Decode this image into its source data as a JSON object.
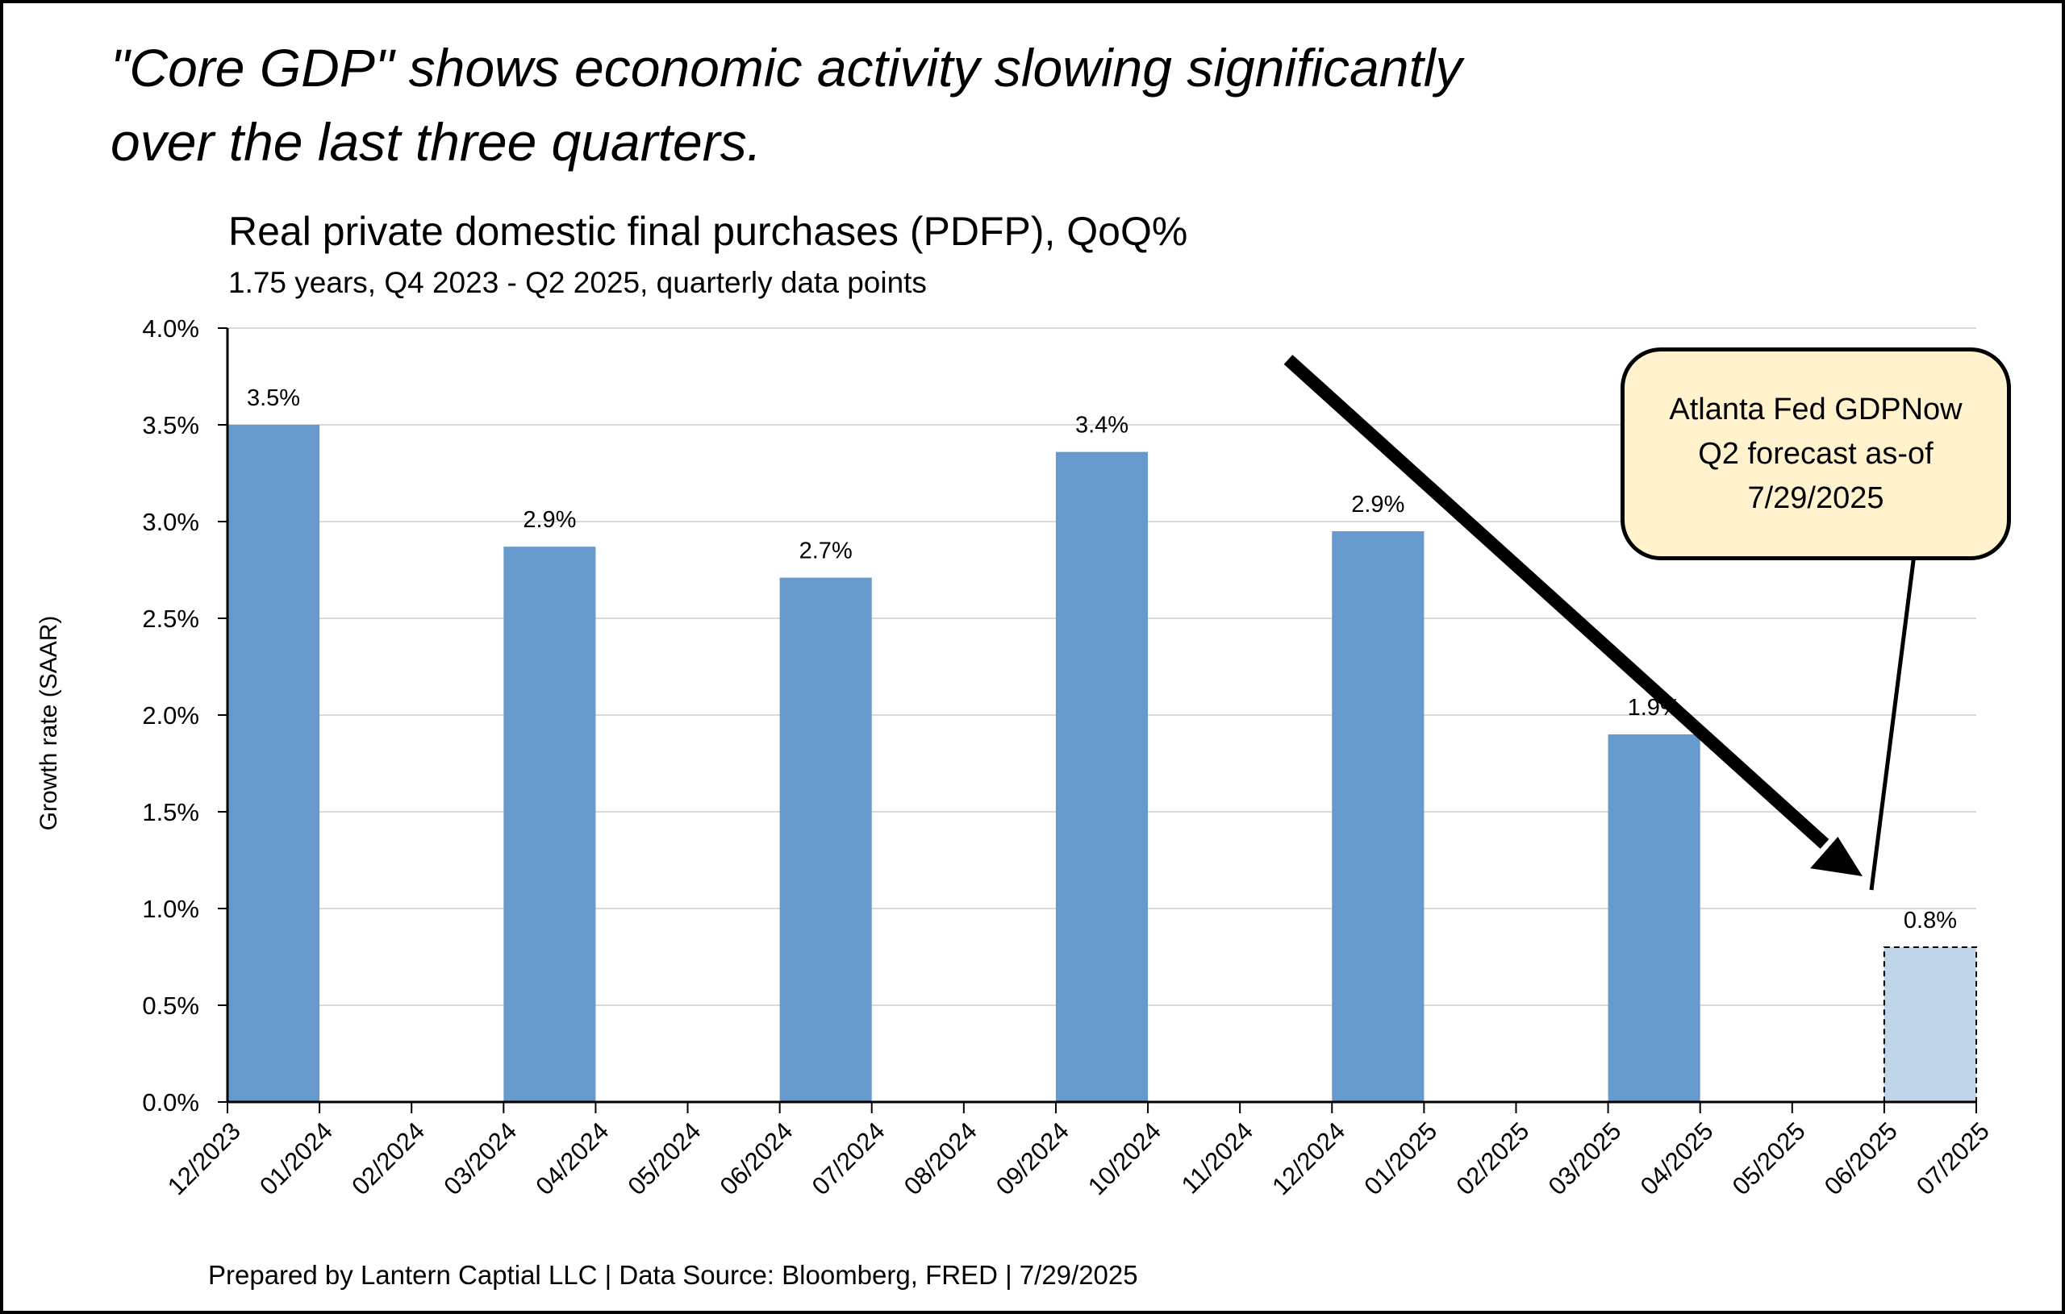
{
  "headline": [
    "\"Core GDP\" shows economic activity slowing significantly",
    "over the last three quarters."
  ],
  "footer": "Prepared by Lantern Captial LLC | Data Source: Bloomberg, FRED | 7/29/2025",
  "callout": [
    "Atlanta Fed GDPNow",
    "Q2 forecast as-of",
    "7/29/2025"
  ],
  "colors": {
    "bar": "#6699cc",
    "forecast_bar": "#c0d5ea",
    "callout_fill": "#fff2cc",
    "grid": "#d9d9d9"
  },
  "chart_data": {
    "type": "bar",
    "title": "Real private domestic final purchases (PDFP), QoQ%",
    "subtitle": "1.75 years, Q4 2023 - Q2 2025, quarterly data points",
    "ylabel": "Growth rate (SAAR)",
    "xlabel": "",
    "ylim": [
      0,
      4.0
    ],
    "yticks": [
      "0.0%",
      "0.5%",
      "1.0%",
      "1.5%",
      "2.0%",
      "2.5%",
      "3.0%",
      "3.5%",
      "4.0%"
    ],
    "xticks": [
      "12/2023",
      "01/2024",
      "02/2024",
      "03/2024",
      "04/2024",
      "05/2024",
      "06/2024",
      "07/2024",
      "08/2024",
      "09/2024",
      "10/2024",
      "11/2024",
      "12/2024",
      "01/2025",
      "02/2025",
      "03/2025",
      "04/2025",
      "05/2025",
      "06/2025",
      "07/2025"
    ],
    "grid": true,
    "bars": [
      {
        "x": "12/2023",
        "value": 3.5,
        "label": "3.5%",
        "forecast": false
      },
      {
        "x": "03/2024",
        "value": 2.87,
        "label": "2.9%",
        "forecast": false
      },
      {
        "x": "06/2024",
        "value": 2.71,
        "label": "2.7%",
        "forecast": false
      },
      {
        "x": "09/2024",
        "value": 3.36,
        "label": "3.4%",
        "forecast": false
      },
      {
        "x": "12/2024",
        "value": 2.95,
        "label": "2.9%",
        "forecast": false
      },
      {
        "x": "03/2025",
        "value": 1.9,
        "label": "1.9%",
        "forecast": false
      },
      {
        "x": "06/2025",
        "value": 0.8,
        "label": "0.8%",
        "forecast": true
      }
    ]
  }
}
